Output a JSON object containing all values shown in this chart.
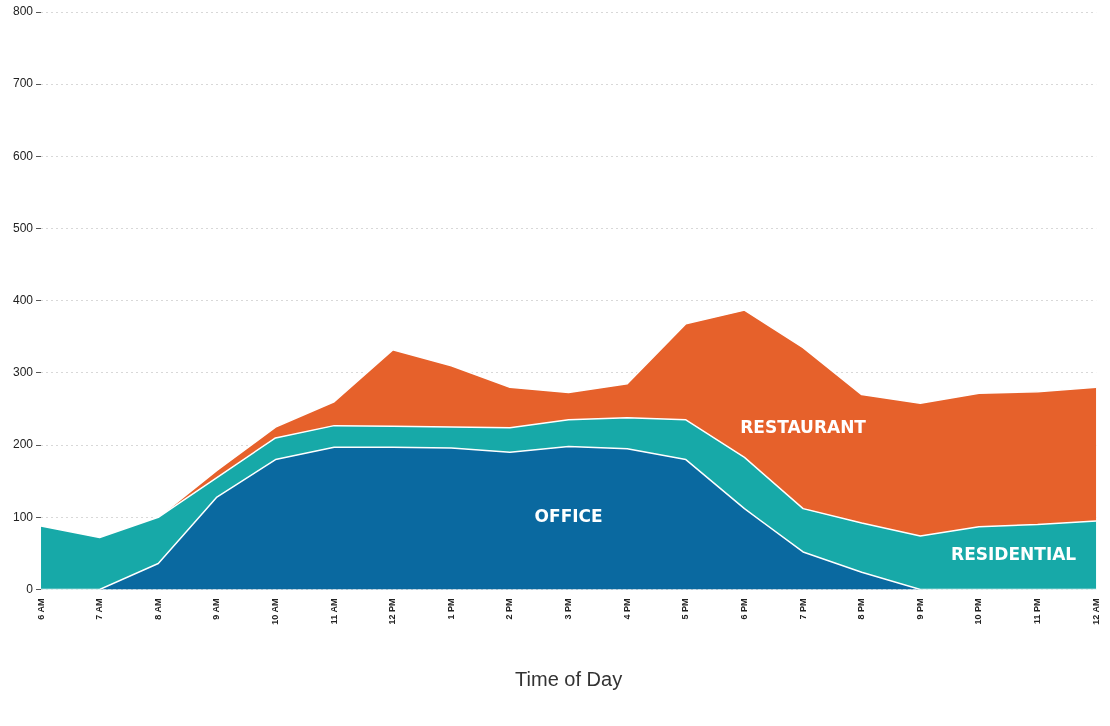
{
  "chart_data": {
    "type": "area",
    "stacked": true,
    "xlabel": "Time of Day",
    "categories": [
      "6 AM",
      "7 AM",
      "8 AM",
      "9 AM",
      "10 AM",
      "11 AM",
      "12 PM",
      "1 PM",
      "2 PM",
      "3 PM",
      "4 PM",
      "5 PM",
      "6 PM",
      "7 PM",
      "8 PM",
      "9 PM",
      "10 PM",
      "11 PM",
      "12 AM"
    ],
    "series": [
      {
        "name": "OFFICE",
        "color": "#0a69a0",
        "values": [
          0,
          0,
          36,
          128,
          180,
          197,
          197,
          196,
          190,
          198,
          195,
          180,
          112,
          52,
          24,
          0,
          0,
          0,
          0
        ]
      },
      {
        "name": "RESIDENTIAL",
        "color": "#17a9a8",
        "values": [
          88,
          72,
          64,
          27,
          30,
          30,
          29,
          29,
          34,
          37,
          43,
          55,
          71,
          60,
          68,
          74,
          87,
          90,
          95
        ]
      },
      {
        "name": "RESTAURANT",
        "color": "#e6612b",
        "values": [
          0,
          0,
          0,
          10,
          15,
          33,
          106,
          85,
          56,
          38,
          47,
          133,
          204,
          223,
          178,
          184,
          185,
          184,
          185
        ]
      }
    ],
    "ylim": [
      0,
      800
    ],
    "yticks": [
      0,
      100,
      200,
      300,
      400,
      500,
      600,
      700,
      800
    ],
    "grid": "y",
    "legend": false
  }
}
